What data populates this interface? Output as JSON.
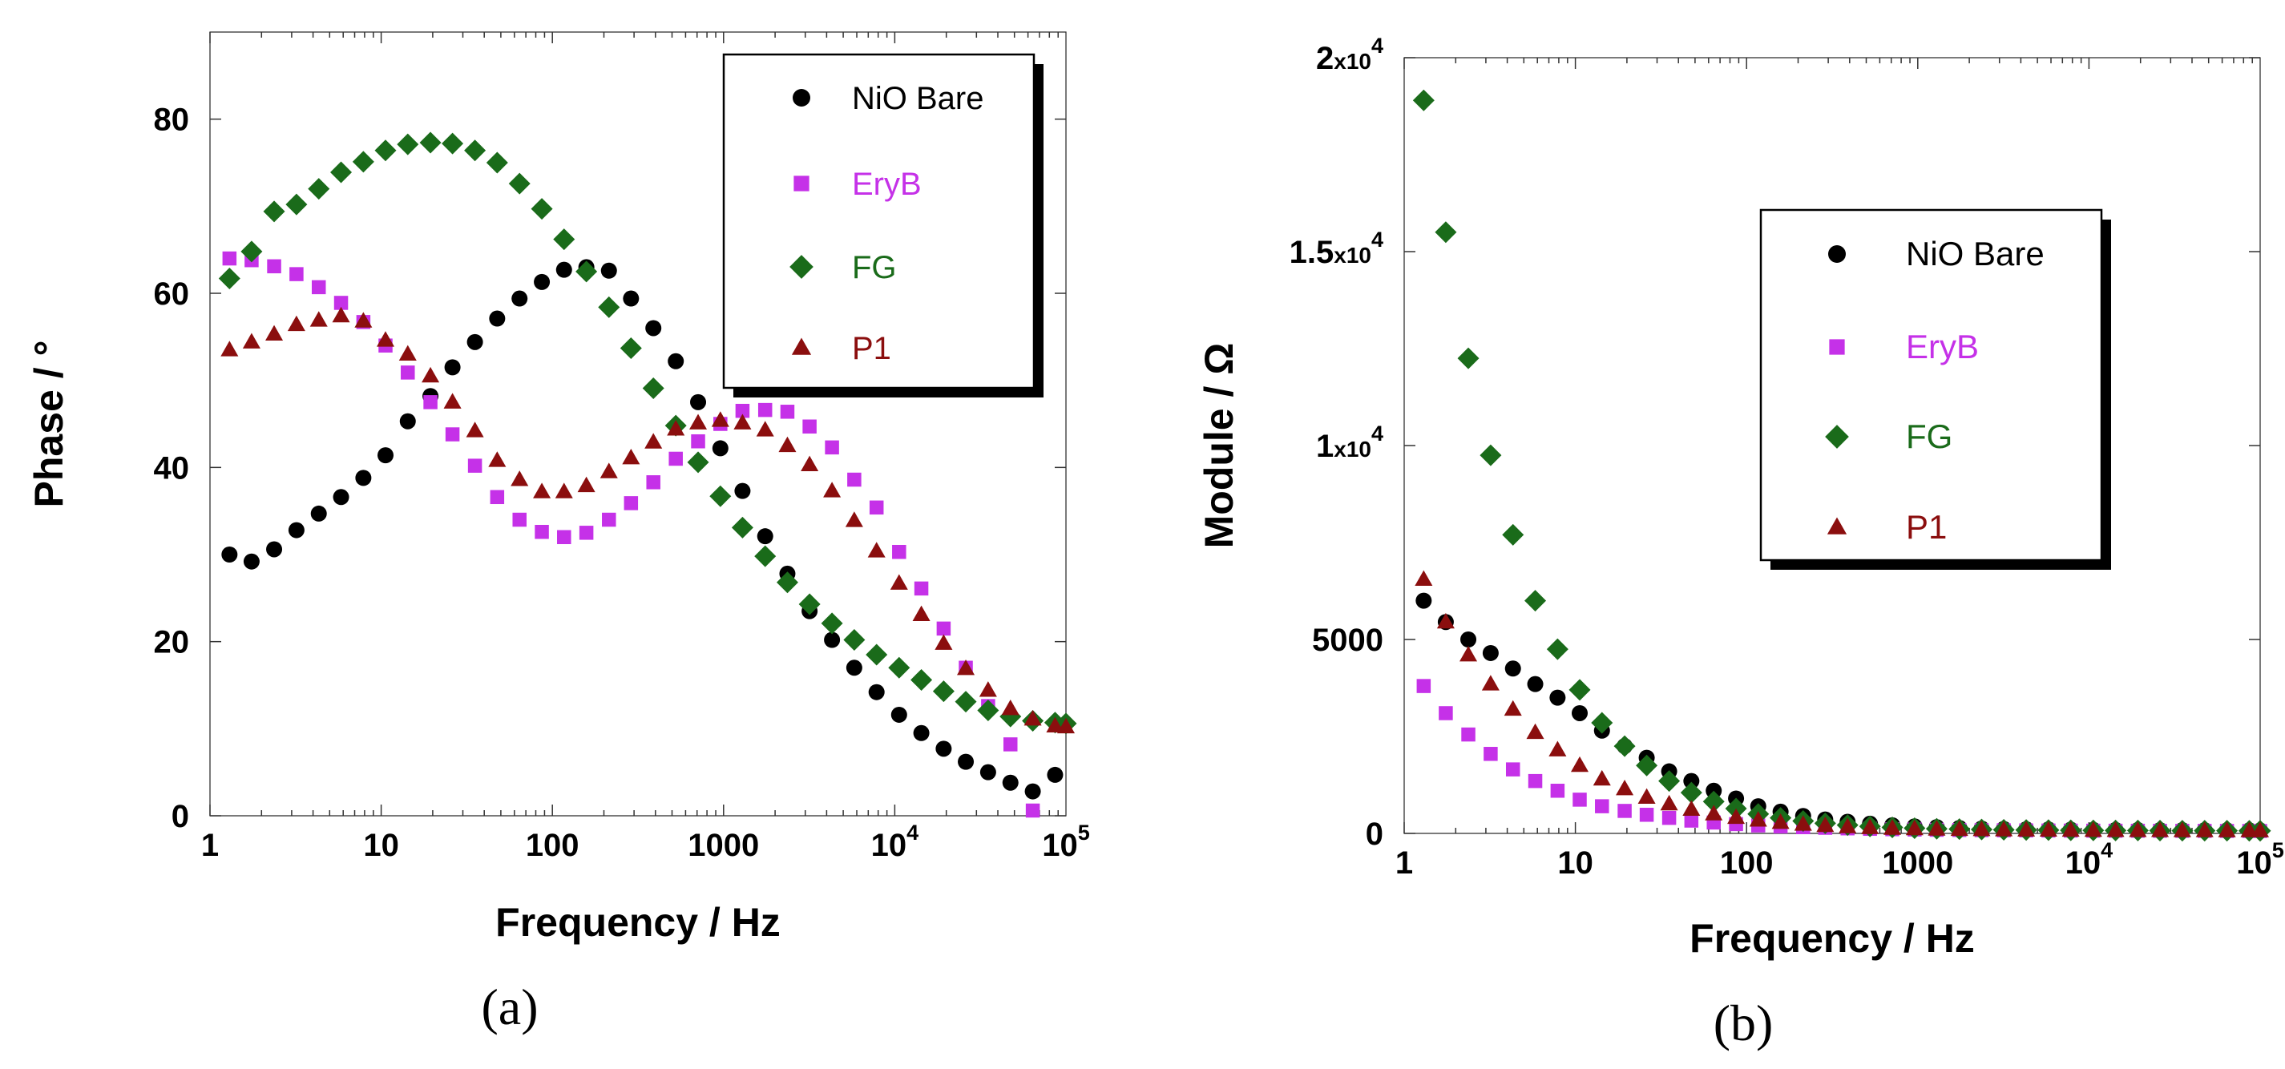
{
  "colors": {
    "NiO Bare": "#000000",
    "EryB": "#c531e8",
    "FG": "#1a6b1a",
    "P1": "#8b0e0e"
  },
  "chart_data": [
    {
      "type": "scatter",
      "panel": "a",
      "caption": "(a)",
      "xlabel": "Frequency / Hz",
      "ylabel": "Phase / °",
      "xscale": "log",
      "xlim": [
        1,
        100000
      ],
      "ylim": [
        0,
        90
      ],
      "x_ticks": [
        {
          "v": 1,
          "t": "1"
        },
        {
          "v": 10,
          "t": "10"
        },
        {
          "v": 100,
          "t": "100"
        },
        {
          "v": 1000,
          "t": "1000"
        },
        {
          "v": 10000,
          "b": "10",
          "e": "4"
        },
        {
          "v": 100000,
          "b": "10",
          "e": "5"
        }
      ],
      "y_ticks": [
        {
          "v": 0,
          "t": "0"
        },
        {
          "v": 20,
          "t": "20"
        },
        {
          "v": 40,
          "t": "40"
        },
        {
          "v": 60,
          "t": "60"
        },
        {
          "v": 80,
          "t": "80"
        }
      ],
      "legend_position": "top-right",
      "series": [
        {
          "name": "NiO Bare",
          "marker": "circle",
          "x": [
            1.3,
            1.75,
            2.37,
            3.2,
            4.32,
            5.83,
            7.87,
            10.6,
            14.3,
            19.4,
            26.1,
            35.3,
            47.6,
            64.3,
            86.8,
            117,
            158,
            214,
            288,
            389,
            526,
            710,
            958,
            1290,
            1750,
            2360,
            3180,
            4300,
            5800,
            7830,
            10600,
            14300,
            19300,
            26000,
            35100,
            47400,
            64000,
            86400
          ],
          "y": [
            30,
            29.2,
            30.6,
            32.8,
            34.7,
            36.6,
            38.8,
            41.4,
            45.3,
            48.2,
            51.5,
            54.4,
            57.1,
            59.4,
            61.3,
            62.7,
            63,
            62.6,
            59.4,
            56,
            52.2,
            47.5,
            42.2,
            37.3,
            32.1,
            27.8,
            23.5,
            20.2,
            17,
            14.2,
            11.6,
            9.5,
            7.7,
            6.2,
            5,
            3.8,
            2.8,
            4.7
          ]
        },
        {
          "name": "EryB",
          "marker": "square",
          "x": [
            1.3,
            1.75,
            2.37,
            3.2,
            4.32,
            5.83,
            7.87,
            10.6,
            14.3,
            19.4,
            26.1,
            35.3,
            47.6,
            64.3,
            86.8,
            117,
            158,
            214,
            288,
            389,
            526,
            710,
            958,
            1290,
            1750,
            2360,
            3180,
            4300,
            5800,
            7830,
            10600,
            14300,
            19300,
            26000,
            35100,
            47400,
            64000
          ],
          "y": [
            64,
            63.8,
            63.1,
            62.2,
            60.7,
            58.9,
            56.7,
            54,
            50.9,
            47.5,
            43.8,
            40.2,
            36.6,
            34,
            32.6,
            32,
            32.5,
            34,
            35.9,
            38.3,
            41,
            43,
            45,
            46.5,
            46.6,
            46.4,
            44.7,
            42.3,
            38.6,
            35.4,
            30.3,
            26.1,
            21.5,
            17,
            12.6,
            8.2,
            0.6
          ]
        },
        {
          "name": "FG",
          "marker": "diamond",
          "x": [
            1.3,
            1.75,
            2.37,
            3.2,
            4.32,
            5.83,
            7.87,
            10.6,
            14.3,
            19.4,
            26.1,
            35.3,
            47.6,
            64.3,
            86.8,
            117,
            158,
            214,
            288,
            389,
            526,
            710,
            958,
            1290,
            1750,
            2360,
            3180,
            4300,
            5800,
            7830,
            10600,
            14300,
            19300,
            26000,
            35100,
            47400,
            64000,
            86400,
            100000
          ],
          "y": [
            61.7,
            64.8,
            69.4,
            70.2,
            72,
            73.9,
            75.1,
            76.4,
            77.1,
            77.3,
            77.2,
            76.4,
            75,
            72.6,
            69.7,
            66.2,
            62.5,
            58.4,
            53.7,
            49.1,
            44.8,
            40.6,
            36.7,
            33.1,
            29.8,
            26.8,
            24.3,
            22.1,
            20.2,
            18.5,
            17,
            15.6,
            14.3,
            13.1,
            12.1,
            11.4,
            10.9,
            10.7,
            10.6
          ]
        },
        {
          "name": "P1",
          "marker": "triangle",
          "x": [
            1.3,
            1.75,
            2.37,
            3.2,
            4.32,
            5.83,
            7.87,
            10.6,
            14.3,
            19.4,
            26.1,
            35.3,
            47.6,
            64.3,
            86.8,
            117,
            158,
            214,
            288,
            389,
            526,
            710,
            958,
            1290,
            1750,
            2360,
            3180,
            4300,
            5800,
            7830,
            10600,
            14300,
            19300,
            26000,
            35100,
            47400,
            64000,
            86400,
            100000
          ],
          "y": [
            53.5,
            54.4,
            55.3,
            56.4,
            56.9,
            57.4,
            56.8,
            54.6,
            53,
            50.5,
            47.5,
            44.2,
            40.8,
            38.6,
            37.2,
            37.2,
            37.9,
            39.5,
            41.1,
            42.9,
            44.4,
            45.1,
            45.4,
            45.1,
            44.3,
            42.5,
            40.3,
            37.3,
            33.9,
            30.4,
            26.7,
            23.1,
            19.8,
            16.9,
            14.4,
            12.3,
            11.1,
            10.3,
            10.2
          ]
        }
      ]
    },
    {
      "type": "scatter",
      "panel": "b",
      "caption": "(b)",
      "xlabel": "Frequency / Hz",
      "ylabel": "Module / Ω",
      "xscale": "log",
      "xlim": [
        1,
        100000
      ],
      "ylim": [
        0,
        20000
      ],
      "x_ticks": [
        {
          "v": 1,
          "t": "1"
        },
        {
          "v": 10,
          "t": "10"
        },
        {
          "v": 100,
          "t": "100"
        },
        {
          "v": 1000,
          "t": "1000"
        },
        {
          "v": 10000,
          "b": "10",
          "e": "4"
        },
        {
          "v": 100000,
          "b": "10",
          "e": "5"
        }
      ],
      "y_ticks": [
        {
          "v": 0,
          "t": "0"
        },
        {
          "v": 5000,
          "t": "5000"
        },
        {
          "v": 10000,
          "m": "1",
          "b": "x10",
          "e": "4"
        },
        {
          "v": 15000,
          "m": "1.5",
          "b": "x10",
          "e": "4"
        },
        {
          "v": 20000,
          "m": "2",
          "b": "x10",
          "e": "4"
        }
      ],
      "legend_position": "right",
      "series": [
        {
          "name": "NiO Bare",
          "marker": "circle",
          "x": [
            1.3,
            1.75,
            2.37,
            3.2,
            4.32,
            5.83,
            7.87,
            10.6,
            14.3,
            19.4,
            26.1,
            35.3,
            47.6,
            64.3,
            86.8,
            117,
            158,
            214,
            288,
            389,
            526,
            710,
            958,
            1290,
            1750,
            2360,
            3180,
            4300,
            5800,
            7830,
            10600,
            14300,
            19300,
            26000,
            35100,
            47400,
            64000,
            86400,
            100000
          ],
          "y": [
            6000,
            5450,
            5000,
            4650,
            4250,
            3850,
            3500,
            3100,
            2650,
            2250,
            1950,
            1600,
            1350,
            1100,
            900,
            700,
            560,
            450,
            360,
            300,
            250,
            210,
            180,
            160,
            140,
            125,
            115,
            105,
            100,
            95,
            90,
            88,
            86,
            84,
            82,
            80,
            78,
            77,
            76
          ]
        },
        {
          "name": "EryB",
          "marker": "square",
          "x": [
            1.3,
            1.75,
            2.37,
            3.2,
            4.32,
            5.83,
            7.87,
            10.6,
            14.3,
            19.4,
            26.1,
            35.3,
            47.6,
            64.3,
            86.8,
            117,
            158,
            214,
            288,
            389,
            526,
            710,
            958,
            1290,
            1750,
            2360,
            3180,
            4300,
            5800,
            7830,
            10600,
            14300,
            19300,
            26000,
            35100,
            47400,
            64000,
            86400,
            100000
          ],
          "y": [
            3800,
            3100,
            2550,
            2050,
            1650,
            1350,
            1100,
            870,
            700,
            580,
            480,
            400,
            330,
            280,
            240,
            205,
            180,
            160,
            145,
            130,
            118,
            108,
            100,
            93,
            88,
            84,
            80,
            77,
            74,
            72,
            70,
            69,
            68,
            67,
            66,
            65,
            64,
            63,
            62
          ]
        },
        {
          "name": "FG",
          "marker": "diamond",
          "x": [
            1.3,
            1.75,
            2.37,
            3.2,
            4.32,
            5.83,
            7.87,
            10.6,
            14.3,
            19.4,
            26.1,
            35.3,
            47.6,
            64.3,
            86.8,
            117,
            158,
            214,
            288,
            389,
            526,
            710,
            958,
            1290,
            1750,
            2360,
            3180,
            4300,
            5800,
            7830,
            10600,
            14300,
            19300,
            26000,
            35100,
            47400,
            64000,
            86400,
            100000
          ],
          "y": [
            18900,
            15500,
            12250,
            9750,
            7700,
            6000,
            4750,
            3700,
            2850,
            2250,
            1750,
            1350,
            1050,
            820,
            640,
            500,
            400,
            320,
            260,
            215,
            180,
            155,
            135,
            120,
            110,
            100,
            93,
            88,
            84,
            81,
            78,
            76,
            74,
            72,
            71,
            70,
            69,
            68,
            67
          ]
        },
        {
          "name": "P1",
          "marker": "triangle",
          "x": [
            1.3,
            1.75,
            2.37,
            3.2,
            4.32,
            5.83,
            7.87,
            10.6,
            14.3,
            19.4,
            26.1,
            35.3,
            47.6,
            64.3,
            86.8,
            117,
            158,
            214,
            288,
            389,
            526,
            710,
            958,
            1290,
            1750,
            2360,
            3180,
            4300,
            5800,
            7830,
            10600,
            14300,
            19300,
            26000,
            35100,
            47400,
            64000,
            86400,
            100000
          ],
          "y": [
            6550,
            5450,
            4600,
            3850,
            3200,
            2600,
            2150,
            1750,
            1400,
            1150,
            930,
            760,
            620,
            500,
            410,
            340,
            280,
            235,
            200,
            170,
            148,
            130,
            118,
            108,
            100,
            94,
            89,
            85,
            82,
            79,
            77,
            75,
            73,
            71,
            70,
            69,
            68,
            67,
            66
          ]
        }
      ]
    }
  ]
}
